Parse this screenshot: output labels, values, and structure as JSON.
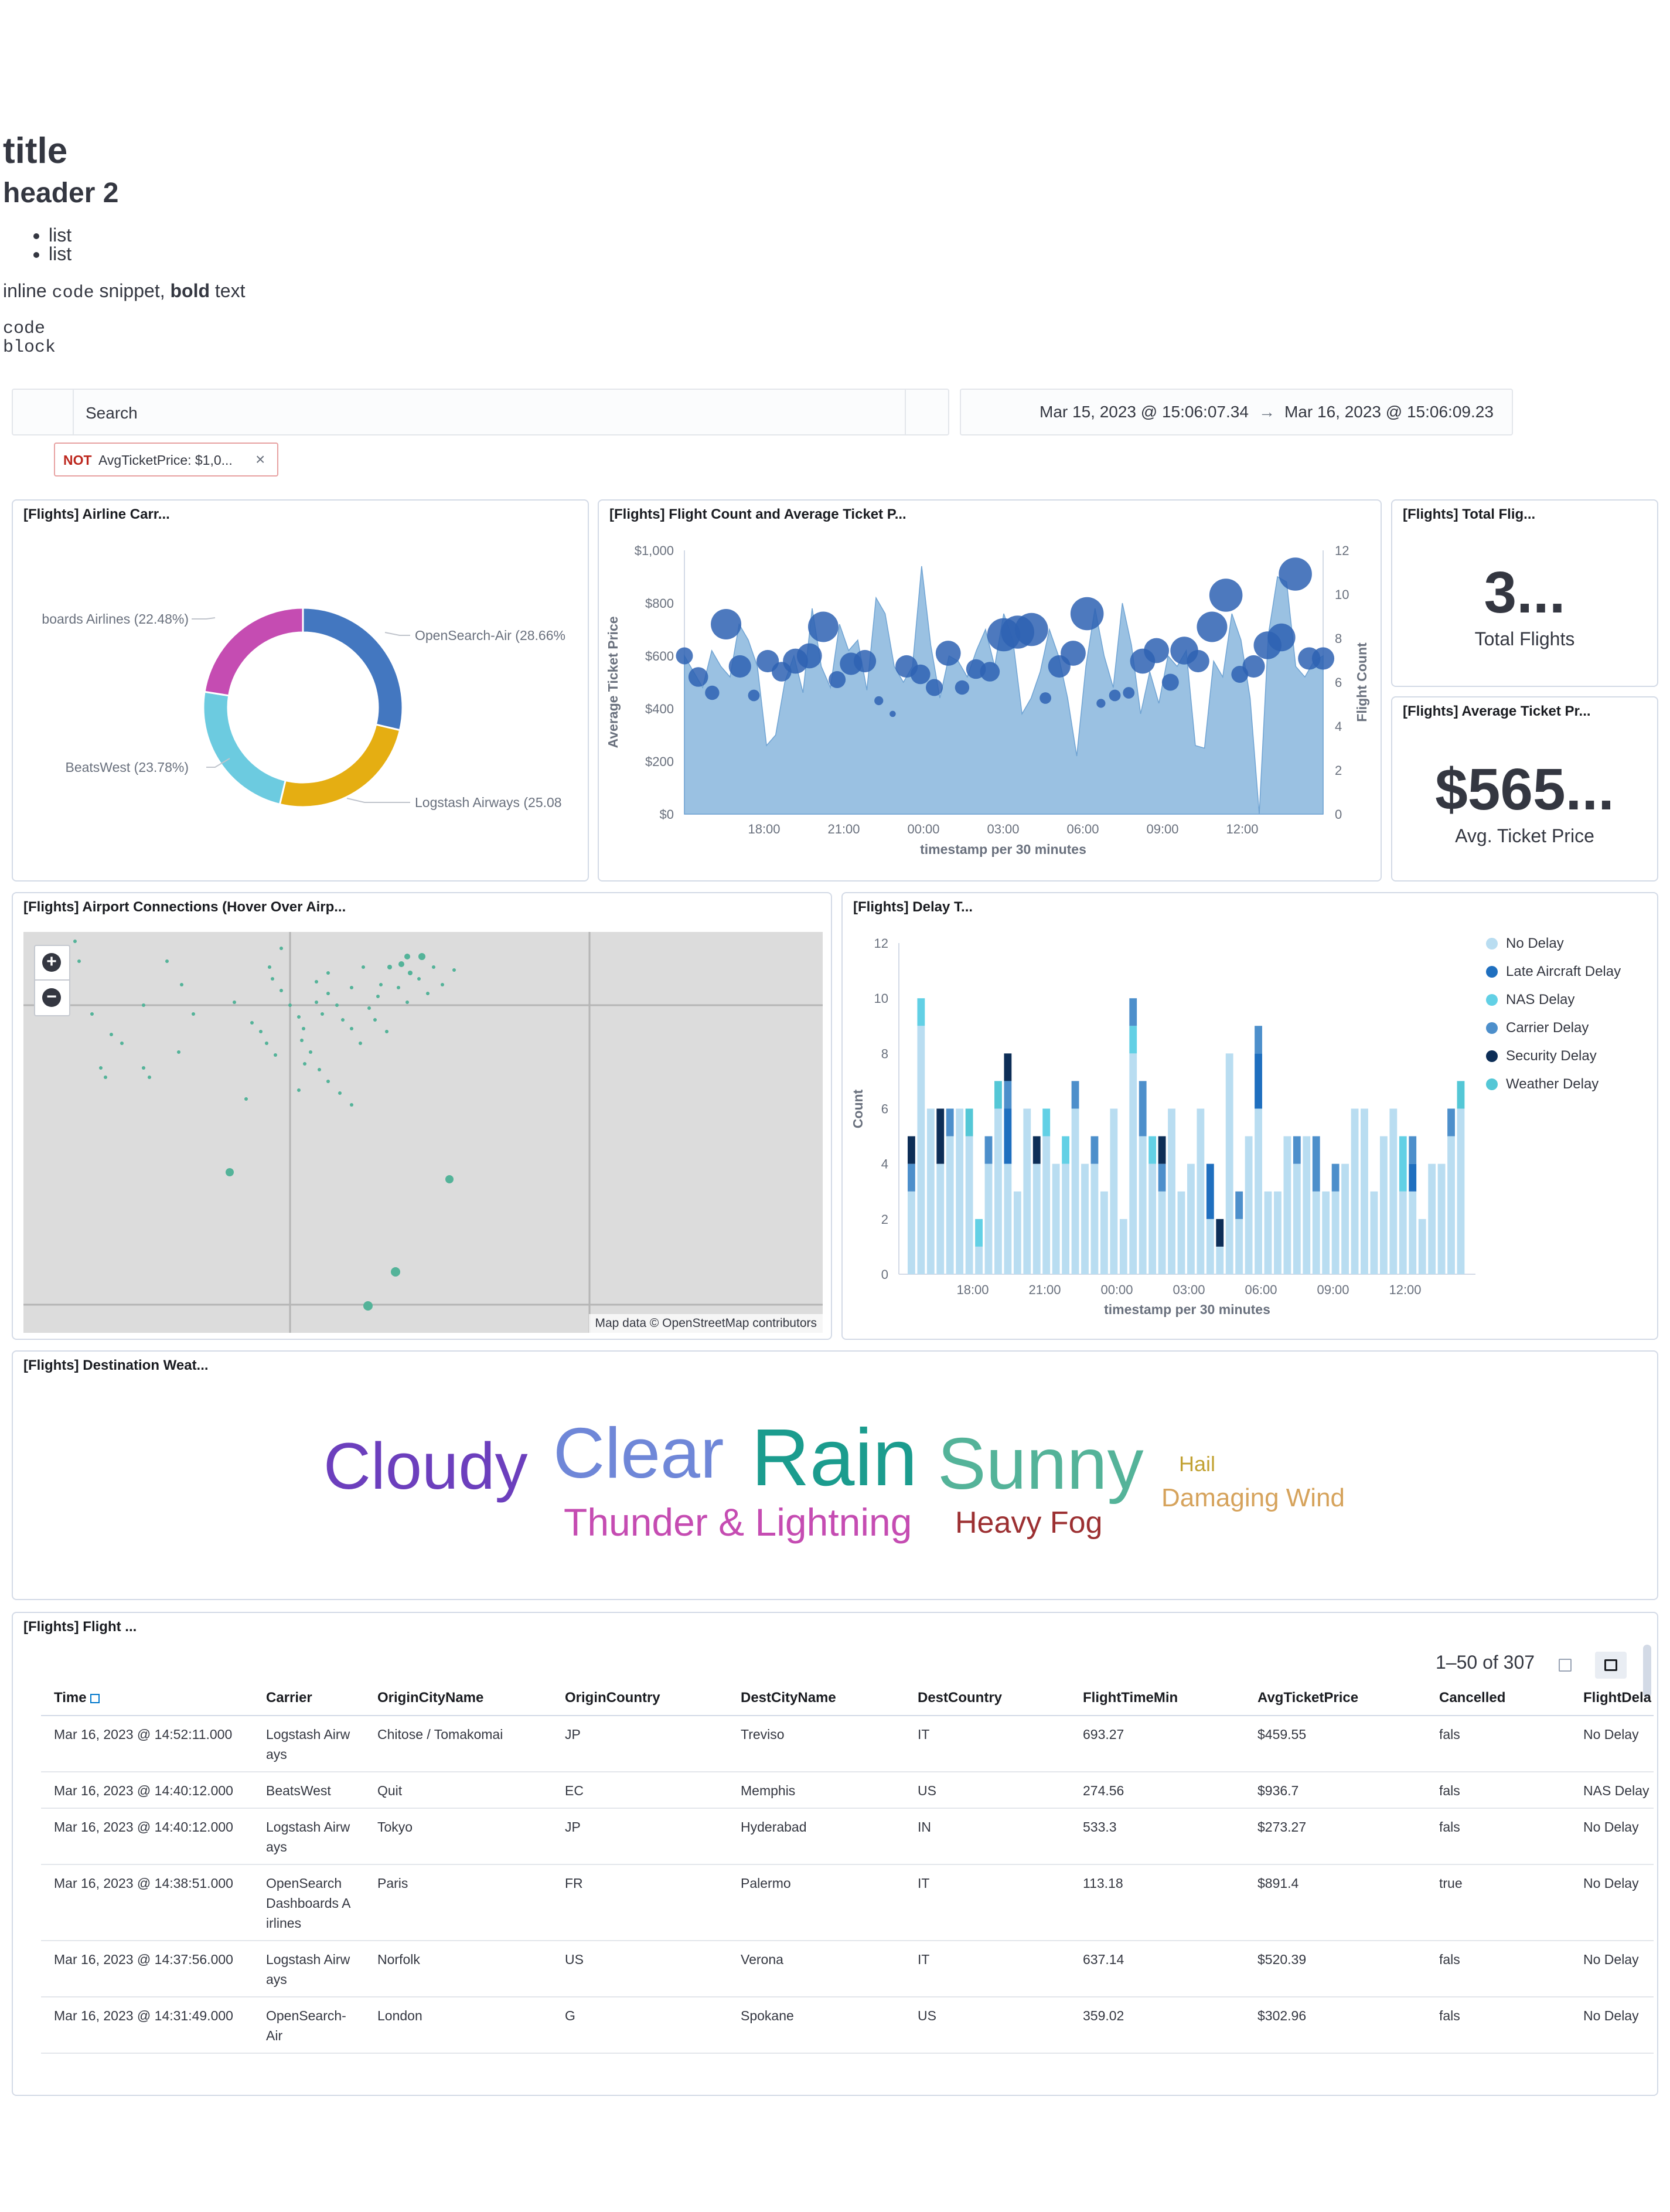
{
  "markdown": {
    "title": "title",
    "header2": "header 2",
    "list": [
      "list",
      "list"
    ],
    "inline_pre": "inline ",
    "inline_code": "code",
    "inline_mid": " snippet, ",
    "inline_bold": "bold",
    "inline_post": " text",
    "code_lines": [
      "code",
      "block"
    ]
  },
  "search": {
    "placeholder": "Search"
  },
  "date_range": {
    "start": "Mar 15, 2023 @ 15:06:07.34",
    "arrow": "→",
    "end": "Mar 16, 2023 @ 15:06:09.23"
  },
  "filter": {
    "not_label": "NOT",
    "text": "AvgTicketPrice: $1,0...",
    "close": "×"
  },
  "panels": {
    "airline": {
      "title": "[Flights] Airline Carr...",
      "chart_data": {
        "type": "pie",
        "donut": true,
        "labels": [
          "OpenSearch-Air (28.66%",
          "Logstash Airways (25.08",
          "BeatsWest (23.78%)",
          "boards Airlines (22.48%)"
        ],
        "values": [
          28.66,
          25.08,
          23.78,
          22.48
        ],
        "colors": [
          "#4377c0",
          "#e5ae12",
          "#6ccbe0",
          "#c54cb2"
        ]
      }
    },
    "flight_count": {
      "title": "[Flights] Flight Count and Average Ticket P...",
      "chart_data": {
        "type": "area",
        "xlabel": "timestamp per 30 minutes",
        "ylabel": "Average Ticket Price",
        "y2label": "Flight Count",
        "x_ticks": [
          "18:00",
          "21:00",
          "00:00",
          "03:00",
          "06:00",
          "09:00",
          "12:00"
        ],
        "y_ticks": [
          "$0",
          "$200",
          "$400",
          "$600",
          "$800",
          "$1,000"
        ],
        "y2_ticks": [
          "0",
          "2",
          "4",
          "6",
          "8",
          "10",
          "12"
        ],
        "ylim": [
          0,
          1000
        ],
        "y2lim": [
          0,
          12
        ],
        "area_values": [
          600,
          540,
          480,
          620,
          560,
          520,
          720,
          660,
          560,
          260,
          300,
          500,
          600,
          460,
          780,
          560,
          480,
          720,
          620,
          660,
          470,
          820,
          760,
          560,
          500,
          560,
          940,
          640,
          440,
          600,
          580,
          520,
          620,
          700,
          560,
          760,
          660,
          380,
          440,
          540,
          700,
          600,
          440,
          220,
          560,
          780,
          600,
          480,
          800,
          640,
          380,
          540,
          420,
          600,
          560,
          620,
          260,
          250,
          580,
          520,
          760,
          660,
          440,
          0,
          680,
          900,
          880,
          560,
          520,
          580,
          600
        ],
        "points": [
          [
            0,
            600,
            5
          ],
          [
            1,
            520,
            6
          ],
          [
            2,
            460,
            4
          ],
          [
            3,
            720,
            10
          ],
          [
            4,
            560,
            7
          ],
          [
            5,
            450,
            3
          ],
          [
            6,
            580,
            7
          ],
          [
            7,
            540,
            6
          ],
          [
            8,
            580,
            8
          ],
          [
            9,
            600,
            8
          ],
          [
            10,
            710,
            10
          ],
          [
            11,
            510,
            5
          ],
          [
            12,
            570,
            7
          ],
          [
            13,
            580,
            7
          ],
          [
            14,
            430,
            2
          ],
          [
            15,
            380,
            1
          ],
          [
            16,
            560,
            7
          ],
          [
            17,
            530,
            6
          ],
          [
            18,
            480,
            5
          ],
          [
            19,
            610,
            8
          ],
          [
            20,
            480,
            4
          ],
          [
            21,
            550,
            6
          ],
          [
            22,
            540,
            6
          ],
          [
            23,
            680,
            11
          ],
          [
            24,
            690,
            11
          ],
          [
            25,
            700,
            11
          ],
          [
            26,
            440,
            3
          ],
          [
            27,
            560,
            7
          ],
          [
            28,
            610,
            8
          ],
          [
            29,
            760,
            11
          ],
          [
            30,
            420,
            2
          ],
          [
            31,
            450,
            3
          ],
          [
            32,
            460,
            3
          ],
          [
            33,
            580,
            8
          ],
          [
            34,
            620,
            8
          ],
          [
            35,
            500,
            5
          ],
          [
            36,
            620,
            9
          ],
          [
            37,
            580,
            7
          ],
          [
            38,
            710,
            10
          ],
          [
            39,
            830,
            11
          ],
          [
            40,
            530,
            5
          ],
          [
            41,
            560,
            7
          ],
          [
            42,
            640,
            9
          ],
          [
            43,
            670,
            9
          ],
          [
            44,
            910,
            11
          ],
          [
            45,
            590,
            7
          ],
          [
            46,
            590,
            7
          ]
        ]
      }
    },
    "total_flights": {
      "title": "[Flights] Total Flig...",
      "value": "3...",
      "label": "Total Flights"
    },
    "avg_price": {
      "title": "[Flights] Average Ticket Pr...",
      "value": "$565...",
      "label": "Avg. Ticket Price"
    },
    "airport_map": {
      "title": "[Flights] Airport Connections (Hover Over Airp...",
      "zoom_in": "+",
      "zoom_out": "−",
      "attribution": "Map data © OpenStreetMap contributors"
    },
    "delay": {
      "title": "[Flights] Delay T...",
      "chart_data": {
        "type": "bar",
        "stacked": true,
        "xlabel": "timestamp per 30 minutes",
        "ylabel": "Count",
        "x_ticks": [
          "18:00",
          "21:00",
          "00:00",
          "03:00",
          "06:00",
          "09:00",
          "12:00"
        ],
        "y_ticks": [
          "0",
          "2",
          "4",
          "6",
          "8",
          "10",
          "12"
        ],
        "ylim": [
          0,
          12
        ],
        "legend": [
          {
            "name": "No Delay",
            "color": "#b9ddf1"
          },
          {
            "name": "Late Aircraft Delay",
            "color": "#1f6fbf"
          },
          {
            "name": "NAS Delay",
            "color": "#62d0e5"
          },
          {
            "name": "Carrier Delay",
            "color": "#4d8fcb"
          },
          {
            "name": "Security Delay",
            "color": "#0d2e57"
          },
          {
            "name": "Weather Delay",
            "color": "#54c7d6"
          }
        ],
        "series": [
          {
            "name": "No Delay",
            "values": [
              3,
              9,
              6,
              4,
              5,
              6,
              5,
              1,
              4,
              6,
              4,
              3,
              6,
              4,
              5,
              4,
              4,
              6,
              4,
              4,
              3,
              6,
              2,
              8,
              5,
              4,
              3,
              6,
              3,
              4,
              6,
              2,
              1,
              8,
              2,
              5,
              6,
              3,
              3,
              5,
              4,
              5,
              3,
              3,
              3,
              4,
              6,
              6,
              3,
              5,
              6,
              3,
              3,
              2,
              4,
              4,
              5,
              6
            ]
          },
          {
            "name": "Late Aircraft Delay",
            "values": [
              0,
              0,
              0,
              0,
              0,
              0,
              0,
              0,
              0,
              0,
              2,
              0,
              0,
              0,
              0,
              0,
              0,
              0,
              0,
              0,
              0,
              0,
              0,
              0,
              0,
              0,
              0,
              0,
              0,
              0,
              0,
              2,
              0,
              0,
              0,
              0,
              2,
              0,
              0,
              0,
              0,
              0,
              0,
              0,
              0,
              0,
              0,
              0,
              0,
              0,
              0,
              0,
              1,
              0,
              0,
              0,
              0,
              0
            ]
          },
          {
            "name": "NAS Delay",
            "values": [
              0,
              1,
              0,
              0,
              0,
              0,
              0,
              1,
              0,
              0,
              0,
              0,
              0,
              0,
              1,
              0,
              1,
              0,
              0,
              0,
              0,
              0,
              0,
              1,
              0,
              1,
              0,
              0,
              0,
              0,
              0,
              0,
              0,
              0,
              0,
              0,
              0,
              0,
              0,
              0,
              0,
              0,
              0,
              0,
              0,
              0,
              0,
              0,
              0,
              0,
              0,
              2,
              0,
              0,
              0,
              0,
              0,
              0
            ]
          },
          {
            "name": "Carrier Delay",
            "values": [
              1,
              0,
              0,
              0,
              1,
              0,
              0,
              0,
              1,
              0,
              1,
              0,
              0,
              0,
              0,
              0,
              0,
              1,
              0,
              1,
              0,
              0,
              0,
              1,
              2,
              0,
              1,
              0,
              0,
              0,
              0,
              0,
              0,
              0,
              1,
              0,
              1,
              0,
              0,
              0,
              1,
              0,
              2,
              0,
              1,
              0,
              0,
              0,
              0,
              0,
              0,
              0,
              1,
              0,
              0,
              0,
              1,
              0
            ]
          },
          {
            "name": "Security Delay",
            "values": [
              1,
              0,
              0,
              2,
              0,
              0,
              0,
              0,
              0,
              0,
              1,
              0,
              0,
              1,
              0,
              0,
              0,
              0,
              0,
              0,
              0,
              0,
              0,
              0,
              0,
              0,
              1,
              0,
              0,
              0,
              0,
              0,
              1,
              0,
              0,
              0,
              0,
              0,
              0,
              0,
              0,
              0,
              0,
              0,
              0,
              0,
              0,
              0,
              0,
              0,
              0,
              0,
              0,
              0,
              0,
              0,
              0,
              0
            ]
          },
          {
            "name": "Weather Delay",
            "values": [
              0,
              0,
              0,
              0,
              0,
              0,
              1,
              0,
              0,
              1,
              0,
              0,
              0,
              0,
              0,
              0,
              0,
              0,
              0,
              0,
              0,
              0,
              0,
              0,
              0,
              0,
              0,
              0,
              0,
              0,
              0,
              0,
              0,
              0,
              0,
              0,
              0,
              0,
              0,
              0,
              0,
              0,
              0,
              0,
              0,
              0,
              0,
              0,
              0,
              0,
              0,
              0,
              0,
              0,
              0,
              0,
              0,
              1
            ]
          }
        ]
      }
    },
    "weather": {
      "title": "[Flights] Destination Weat...",
      "words": [
        {
          "text": "Cloudy",
          "color": "#6c3fbd"
        },
        {
          "text": "Clear",
          "color": "#6f87d8"
        },
        {
          "text": "Rain",
          "color": "#1b9c8e"
        },
        {
          "text": "Sunny",
          "color": "#54b399"
        },
        {
          "text": "Hail",
          "color": "#c2a233"
        },
        {
          "text": "Damaging Wind",
          "color": "#d6a35c"
        },
        {
          "text": "Thunder & Lightning",
          "color": "#c54cb2"
        },
        {
          "text": "Heavy Fog",
          "color": "#9c3032"
        }
      ]
    },
    "flight_log": {
      "title": "[Flights] Flight ...",
      "pagination": "1–50 of 307",
      "columns": [
        "Time",
        "Carrier",
        "OriginCityName",
        "OriginCountry",
        "DestCityName",
        "DestCountry",
        "FlightTimeMin",
        "AvgTicketPrice",
        "Cancelled",
        "FlightDela"
      ],
      "rows": [
        [
          "Mar 16, 2023 @ 14:52:11.000",
          "Logstash Airw ays",
          "Chitose / Tomakomai",
          "JP",
          "Treviso",
          "IT",
          "693.27",
          "$459.55",
          "fals",
          "No Delay"
        ],
        [
          "Mar 16, 2023 @ 14:40:12.000",
          "BeatsWest",
          "Quit",
          "EC",
          "Memphis",
          "US",
          "274.56",
          "$936.7",
          "fals",
          "NAS Delay"
        ],
        [
          "Mar 16, 2023 @ 14:40:12.000",
          "Logstash Airw ays",
          "Tokyo",
          "JP",
          "Hyderabad",
          "IN",
          "533.3",
          "$273.27",
          "fals",
          "No Delay"
        ],
        [
          "Mar 16, 2023 @ 14:38:51.000",
          "OpenSearch Dashboards A irlines",
          "Paris",
          "FR",
          "Palermo",
          "IT",
          "113.18",
          "$891.4",
          "true",
          "No Delay"
        ],
        [
          "Mar 16, 2023 @ 14:37:56.000",
          "Logstash Airw ays",
          "Norfolk",
          "US",
          "Verona",
          "IT",
          "637.14",
          "$520.39",
          "fals",
          "No Delay"
        ],
        [
          "Mar 16, 2023 @ 14:31:49.000",
          "OpenSearch- Air",
          "London",
          "G",
          "Spokane",
          "US",
          "359.02",
          "$302.96",
          "fals",
          "No Delay"
        ]
      ]
    }
  }
}
